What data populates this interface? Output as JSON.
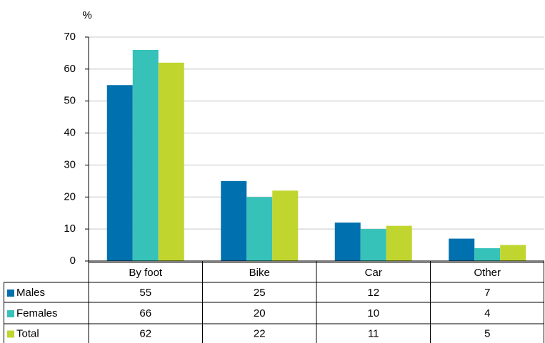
{
  "chart_data": {
    "type": "bar",
    "y_label": "%",
    "categories": [
      "By foot",
      "Bike",
      "Car",
      "Other"
    ],
    "series": [
      {
        "name": "Males",
        "color": "#0070ae",
        "values": [
          55,
          25,
          12,
          7
        ]
      },
      {
        "name": "Females",
        "color": "#36c2b8",
        "values": [
          66,
          20,
          10,
          4
        ]
      },
      {
        "name": "Total",
        "color": "#c1d52f",
        "values": [
          62,
          22,
          11,
          5
        ]
      }
    ],
    "ylim": [
      0,
      70
    ],
    "yticks": [
      0,
      10,
      20,
      30,
      40,
      50,
      60,
      70
    ],
    "grid": true
  }
}
